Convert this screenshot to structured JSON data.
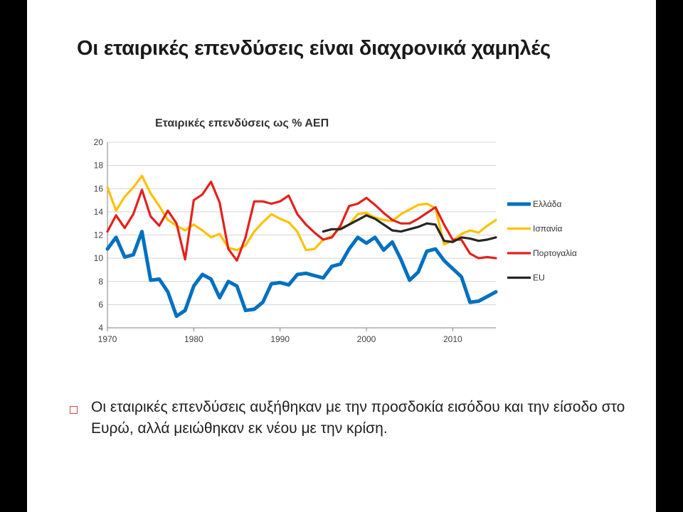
{
  "slide": {
    "title": "Οι εταιρικές επενδύσεις είναι διαχρονικά χαμηλές",
    "bullet": "Οι εταιρικές επενδύσεις αυξήθηκαν με την προσδοκία εισόδου και την είσοδο στο Ευρώ, αλλά μειώθηκαν εκ νέου με την κρίση."
  },
  "chart_data": {
    "type": "line",
    "title": "Εταιρικές επενδύσεις ως % ΑΕΠ",
    "xlabel": "",
    "ylabel": "",
    "xlim": [
      1970,
      2015
    ],
    "ylim": [
      4,
      20
    ],
    "x_ticks": [
      1970,
      1980,
      1990,
      2000,
      2010
    ],
    "y_ticks": [
      4,
      6,
      8,
      10,
      12,
      14,
      16,
      18,
      20
    ],
    "grid": true,
    "legend_position": "right",
    "series": [
      {
        "name": "Ελλάδα",
        "color": "#0070c0",
        "x": [
          1970,
          1971,
          1972,
          1973,
          1974,
          1975,
          1976,
          1977,
          1978,
          1979,
          1980,
          1981,
          1982,
          1983,
          1984,
          1985,
          1986,
          1987,
          1988,
          1989,
          1990,
          1991,
          1992,
          1993,
          1994,
          1995,
          1996,
          1997,
          1998,
          1999,
          2000,
          2001,
          2002,
          2003,
          2004,
          2005,
          2006,
          2007,
          2008,
          2009,
          2010,
          2011,
          2012,
          2013,
          2014,
          2015
        ],
        "values": [
          10.8,
          11.8,
          10.1,
          10.3,
          12.3,
          8.1,
          8.2,
          7.1,
          5.0,
          5.5,
          7.6,
          8.6,
          8.2,
          6.6,
          8.0,
          7.6,
          5.5,
          5.6,
          6.2,
          7.8,
          7.9,
          7.7,
          8.6,
          8.7,
          8.5,
          8.3,
          9.3,
          9.5,
          10.8,
          11.8,
          11.3,
          11.8,
          10.7,
          11.4,
          9.9,
          8.1,
          8.8,
          10.6,
          10.8,
          9.8,
          9.1,
          8.4,
          6.2,
          6.3,
          6.7,
          7.1
        ]
      },
      {
        "name": "Ισπανία",
        "color": "#ffc000",
        "x": [
          1970,
          1971,
          1972,
          1973,
          1974,
          1975,
          1976,
          1977,
          1978,
          1979,
          1980,
          1981,
          1982,
          1983,
          1984,
          1985,
          1986,
          1987,
          1988,
          1989,
          1990,
          1991,
          1992,
          1993,
          1994,
          1995,
          1996,
          1997,
          1998,
          1999,
          2000,
          2001,
          2002,
          2003,
          2004,
          2005,
          2006,
          2007,
          2008,
          2009,
          2010,
          2011,
          2012,
          2013,
          2014,
          2015
        ],
        "values": [
          16.1,
          14.1,
          15.3,
          16.1,
          17.1,
          15.6,
          14.5,
          13.3,
          12.8,
          12.4,
          12.9,
          12.4,
          11.8,
          12.1,
          10.9,
          10.7,
          11.1,
          12.3,
          13.1,
          13.8,
          13.4,
          13.1,
          12.3,
          10.7,
          10.8,
          11.6,
          11.9,
          12.6,
          12.9,
          13.8,
          13.9,
          13.5,
          13.3,
          13.2,
          13.8,
          14.2,
          14.6,
          14.7,
          14.3,
          11.2,
          11.5,
          12.1,
          12.4,
          12.2,
          12.8,
          13.3
        ]
      },
      {
        "name": "Πορτογαλία",
        "color": "#e3211c",
        "x": [
          1970,
          1971,
          1972,
          1973,
          1974,
          1975,
          1976,
          1977,
          1978,
          1979,
          1980,
          1981,
          1982,
          1983,
          1984,
          1985,
          1986,
          1987,
          1988,
          1989,
          1990,
          1991,
          1992,
          1993,
          1994,
          1995,
          1996,
          1997,
          1998,
          1999,
          2000,
          2001,
          2002,
          2003,
          2004,
          2005,
          2006,
          2007,
          2008,
          2009,
          2010,
          2011,
          2012,
          2013,
          2014,
          2015
        ],
        "values": [
          12.3,
          13.7,
          12.6,
          13.8,
          15.9,
          13.6,
          12.8,
          14.1,
          13.0,
          9.9,
          15.0,
          15.5,
          16.6,
          14.8,
          10.8,
          9.8,
          11.8,
          14.9,
          14.9,
          14.7,
          14.9,
          15.4,
          13.8,
          12.9,
          12.2,
          11.6,
          11.8,
          12.8,
          14.5,
          14.7,
          15.2,
          14.6,
          13.9,
          13.3,
          13.0,
          13.0,
          13.4,
          13.9,
          14.4,
          12.9,
          11.6,
          11.6,
          10.4,
          10.0,
          10.1,
          10.0
        ]
      },
      {
        "name": "EU",
        "color": "#262626",
        "x": [
          1995,
          1996,
          1997,
          1998,
          1999,
          2000,
          2001,
          2002,
          2003,
          2004,
          2005,
          2006,
          2007,
          2008,
          2009,
          2010,
          2011,
          2012,
          2013,
          2014,
          2015
        ],
        "values": [
          12.3,
          12.5,
          12.5,
          12.9,
          13.3,
          13.7,
          13.4,
          12.9,
          12.4,
          12.3,
          12.5,
          12.7,
          13.0,
          12.9,
          11.5,
          11.4,
          11.8,
          11.7,
          11.5,
          11.6,
          11.8
        ]
      }
    ]
  }
}
